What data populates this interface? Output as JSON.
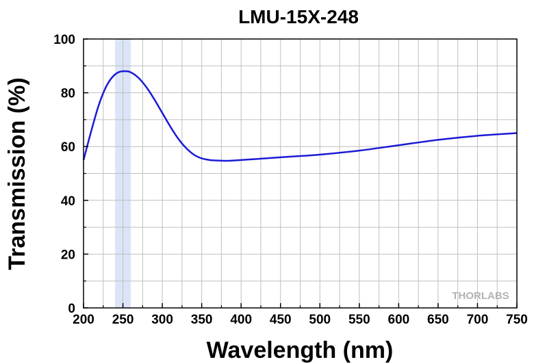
{
  "chart_data": {
    "type": "line",
    "title": "LMU-15X-248",
    "xlabel": "Wavelength (nm)",
    "ylabel": "Transmission (%)",
    "xlim": [
      200,
      750
    ],
    "ylim": [
      0,
      100
    ],
    "xticks": [
      200,
      250,
      300,
      350,
      400,
      450,
      500,
      550,
      600,
      650,
      700,
      750
    ],
    "yticks": [
      0,
      20,
      40,
      60,
      80,
      100
    ],
    "grid": true,
    "highlight_band": [
      240,
      260
    ],
    "colors": {
      "line": "#1a1ad6",
      "band": "#dbe5f7",
      "grid": "#bfbfbf"
    },
    "series": [
      {
        "x": [
          200,
          210,
          220,
          230,
          240,
          250,
          255,
          260,
          270,
          280,
          290,
          300,
          310,
          320,
          330,
          340,
          350,
          360,
          370,
          380,
          400,
          450,
          500,
          550,
          600,
          650,
          700,
          750
        ],
        "y": [
          55,
          66,
          76,
          83,
          86.8,
          88,
          88,
          87.6,
          85.5,
          82,
          77.5,
          72.5,
          67.5,
          63,
          59.5,
          57,
          55.6,
          55,
          54.8,
          54.7,
          55,
          56,
          57,
          58.5,
          60.5,
          62.5,
          64,
          65
        ]
      }
    ]
  },
  "logo": {
    "text": "THORLABS"
  }
}
